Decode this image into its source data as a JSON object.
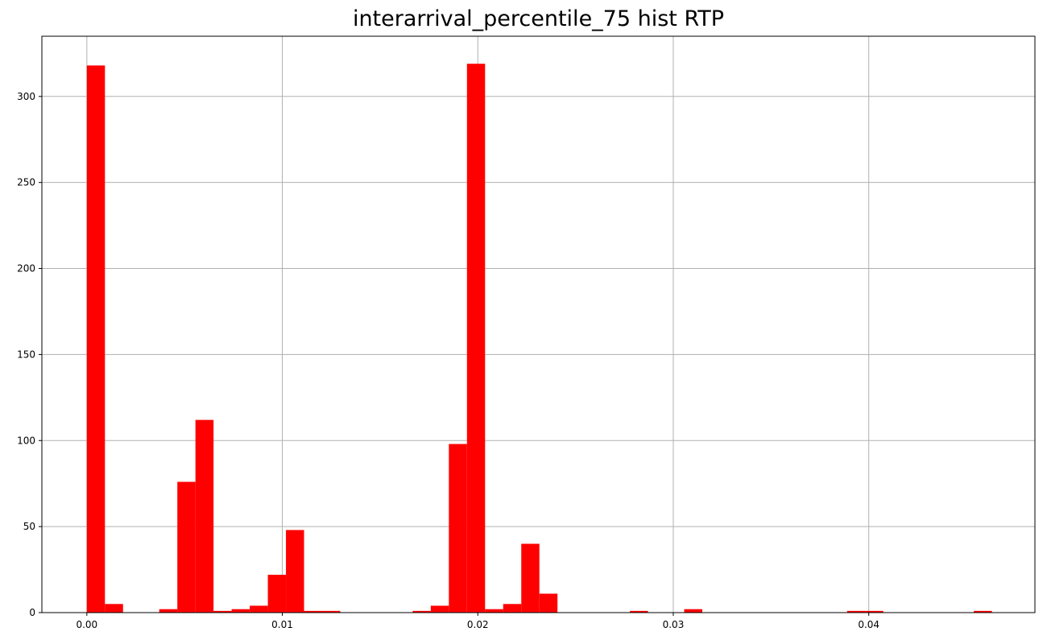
{
  "chart_data": {
    "type": "bar",
    "title": "interarrival_percentile_75 hist RTP",
    "xlabel": "",
    "ylabel": "",
    "xlim": [
      -0.0023,
      0.0485
    ],
    "ylim": [
      0,
      335
    ],
    "grid": true,
    "bar_color": "#ff0000",
    "bin_start": 0.0,
    "bin_width": 0.000926,
    "counts": [
      318,
      5,
      0,
      0,
      2,
      76,
      112,
      1,
      2,
      4,
      22,
      48,
      1,
      1,
      0,
      0,
      0,
      0,
      1,
      4,
      98,
      319,
      2,
      5,
      40,
      11,
      0,
      0,
      0,
      0,
      1,
      0,
      0,
      2,
      0,
      0,
      0,
      0,
      0,
      0,
      0,
      0,
      1,
      1,
      0,
      0,
      0,
      0,
      0,
      1
    ],
    "x_ticks": [
      {
        "value": 0.0,
        "label": "0.00"
      },
      {
        "value": 0.01,
        "label": "0.01"
      },
      {
        "value": 0.02,
        "label": "0.02"
      },
      {
        "value": 0.03,
        "label": "0.03"
      },
      {
        "value": 0.04,
        "label": "0.04"
      }
    ],
    "y_ticks": [
      {
        "value": 0,
        "label": "0"
      },
      {
        "value": 50,
        "label": "50"
      },
      {
        "value": 100,
        "label": "100"
      },
      {
        "value": 150,
        "label": "150"
      },
      {
        "value": 200,
        "label": "200"
      },
      {
        "value": 250,
        "label": "250"
      },
      {
        "value": 300,
        "label": "300"
      }
    ]
  }
}
